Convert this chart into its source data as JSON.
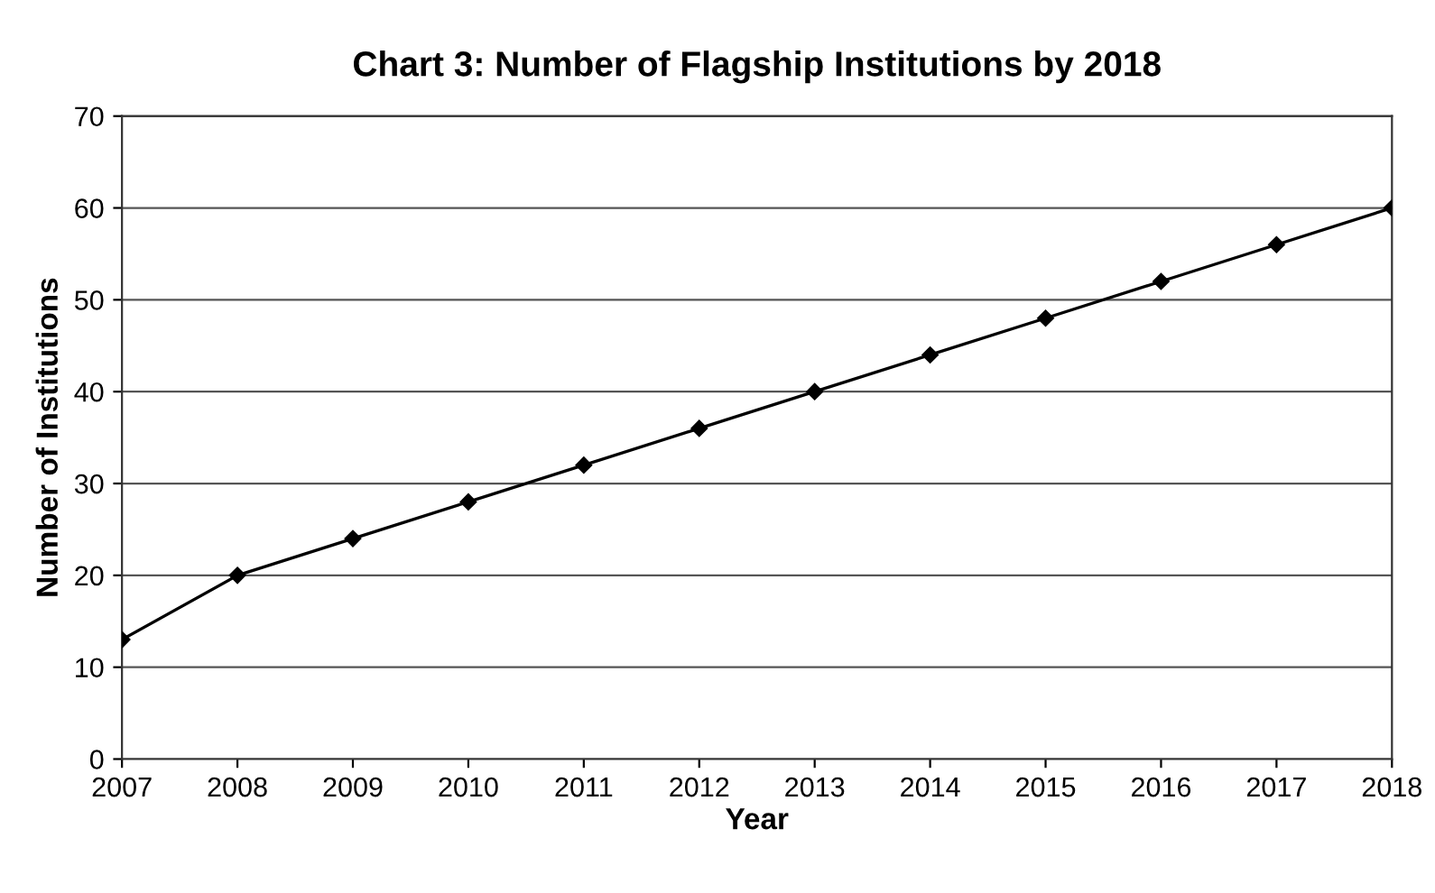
{
  "chart_data": {
    "type": "line",
    "title": "Chart 3: Number of Flagship Institutions by 2018",
    "xlabel": "Year",
    "ylabel": "Number of Institutions",
    "categories": [
      "2007",
      "2008",
      "2009",
      "2010",
      "2011",
      "2012",
      "2013",
      "2014",
      "2015",
      "2016",
      "2017",
      "2018"
    ],
    "series": [
      {
        "color": "#000000",
        "values": [
          13,
          20,
          24,
          28,
          32,
          36,
          40,
          44,
          48,
          52,
          56,
          60
        ]
      }
    ],
    "ylim": [
      0,
      70
    ],
    "yticks": [
      0,
      10,
      20,
      30,
      40,
      50,
      60,
      70
    ],
    "grid": "y",
    "marker": "diamond",
    "line_style": "solid"
  }
}
